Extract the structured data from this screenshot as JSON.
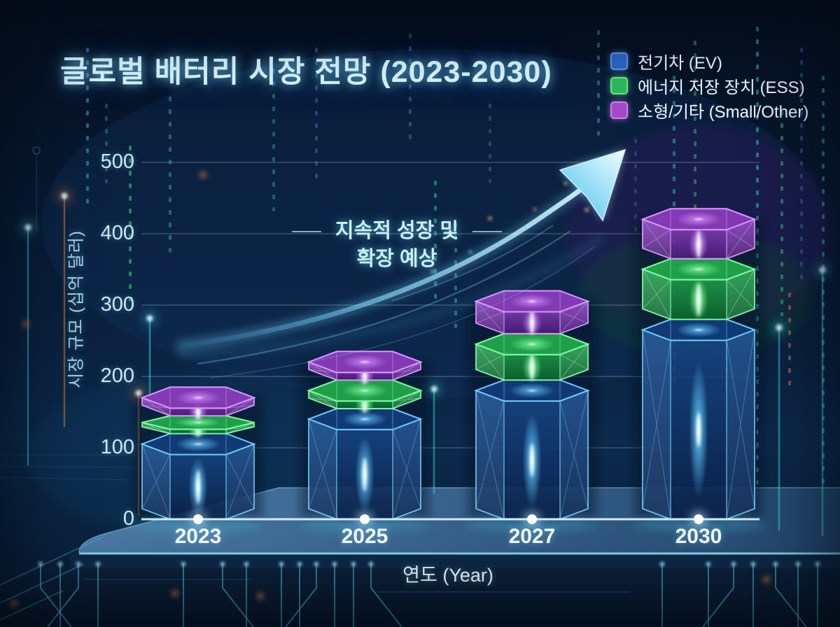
{
  "title": "글로벌 배터리 시장 전망 (2023-2030)",
  "legend": {
    "items": [
      {
        "label": "전기차 (EV)",
        "color": "#2b66c4"
      },
      {
        "label": "에너지 저장 장치 (ESS)",
        "color": "#2eb95c"
      },
      {
        "label": "소형/기타 (Small/Other)",
        "color": "#a449c8"
      }
    ]
  },
  "annotation": {
    "line1": "지속적 성장 및",
    "line2": "확장 예상"
  },
  "chart_data": {
    "type": "bar",
    "stacked": true,
    "title": "글로벌 배터리 시장 전망 (2023-2030)",
    "categories": [
      "2023",
      "2025",
      "2027",
      "2030"
    ],
    "series": [
      {
        "name": "전기차 (EV)",
        "color": "#2b66c4",
        "values": [
          120,
          155,
          195,
          280
        ]
      },
      {
        "name": "에너지 저장 장치 (ESS)",
        "color": "#2eb95c",
        "values": [
          25,
          40,
          65,
          85
        ]
      },
      {
        "name": "소형/기타 (Small/Other)",
        "color": "#a449c8",
        "values": [
          40,
          40,
          60,
          70
        ]
      }
    ],
    "totals": [
      185,
      235,
      320,
      435
    ],
    "xlabel": "연도 (Year)",
    "ylabel": "시장 규모 (십억 달러)",
    "ylim": [
      0,
      500
    ],
    "yticks": [
      0,
      100,
      200,
      300,
      400,
      500
    ],
    "grid": true,
    "legend_position": "top-right"
  }
}
